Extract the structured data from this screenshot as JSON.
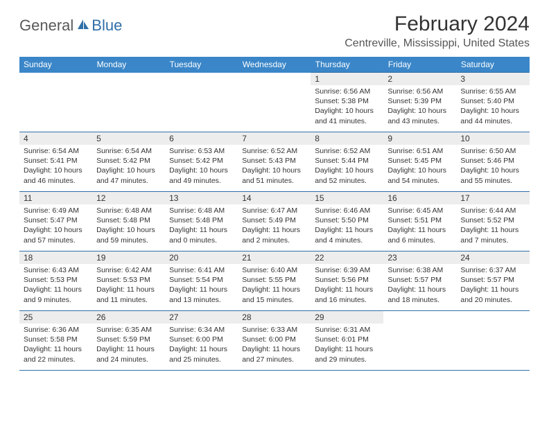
{
  "logo": {
    "general": "General",
    "blue": "Blue"
  },
  "title": "February 2024",
  "location": "Centreville, Mississippi, United States",
  "dayHeaders": [
    "Sunday",
    "Monday",
    "Tuesday",
    "Wednesday",
    "Thursday",
    "Friday",
    "Saturday"
  ],
  "colors": {
    "headerBg": "#3a86c8",
    "headerText": "#ffffff",
    "dayNumBg": "#ededed",
    "gridLine": "#2f6fa8",
    "logoBlue": "#2f6fa8",
    "logoGray": "#595959"
  },
  "weeks": [
    [
      null,
      null,
      null,
      null,
      {
        "n": "1",
        "sr": "Sunrise: 6:56 AM",
        "ss": "Sunset: 5:38 PM",
        "d1": "Daylight: 10 hours",
        "d2": "and 41 minutes."
      },
      {
        "n": "2",
        "sr": "Sunrise: 6:56 AM",
        "ss": "Sunset: 5:39 PM",
        "d1": "Daylight: 10 hours",
        "d2": "and 43 minutes."
      },
      {
        "n": "3",
        "sr": "Sunrise: 6:55 AM",
        "ss": "Sunset: 5:40 PM",
        "d1": "Daylight: 10 hours",
        "d2": "and 44 minutes."
      }
    ],
    [
      {
        "n": "4",
        "sr": "Sunrise: 6:54 AM",
        "ss": "Sunset: 5:41 PM",
        "d1": "Daylight: 10 hours",
        "d2": "and 46 minutes."
      },
      {
        "n": "5",
        "sr": "Sunrise: 6:54 AM",
        "ss": "Sunset: 5:42 PM",
        "d1": "Daylight: 10 hours",
        "d2": "and 47 minutes."
      },
      {
        "n": "6",
        "sr": "Sunrise: 6:53 AM",
        "ss": "Sunset: 5:42 PM",
        "d1": "Daylight: 10 hours",
        "d2": "and 49 minutes."
      },
      {
        "n": "7",
        "sr": "Sunrise: 6:52 AM",
        "ss": "Sunset: 5:43 PM",
        "d1": "Daylight: 10 hours",
        "d2": "and 51 minutes."
      },
      {
        "n": "8",
        "sr": "Sunrise: 6:52 AM",
        "ss": "Sunset: 5:44 PM",
        "d1": "Daylight: 10 hours",
        "d2": "and 52 minutes."
      },
      {
        "n": "9",
        "sr": "Sunrise: 6:51 AM",
        "ss": "Sunset: 5:45 PM",
        "d1": "Daylight: 10 hours",
        "d2": "and 54 minutes."
      },
      {
        "n": "10",
        "sr": "Sunrise: 6:50 AM",
        "ss": "Sunset: 5:46 PM",
        "d1": "Daylight: 10 hours",
        "d2": "and 55 minutes."
      }
    ],
    [
      {
        "n": "11",
        "sr": "Sunrise: 6:49 AM",
        "ss": "Sunset: 5:47 PM",
        "d1": "Daylight: 10 hours",
        "d2": "and 57 minutes."
      },
      {
        "n": "12",
        "sr": "Sunrise: 6:48 AM",
        "ss": "Sunset: 5:48 PM",
        "d1": "Daylight: 10 hours",
        "d2": "and 59 minutes."
      },
      {
        "n": "13",
        "sr": "Sunrise: 6:48 AM",
        "ss": "Sunset: 5:48 PM",
        "d1": "Daylight: 11 hours",
        "d2": "and 0 minutes."
      },
      {
        "n": "14",
        "sr": "Sunrise: 6:47 AM",
        "ss": "Sunset: 5:49 PM",
        "d1": "Daylight: 11 hours",
        "d2": "and 2 minutes."
      },
      {
        "n": "15",
        "sr": "Sunrise: 6:46 AM",
        "ss": "Sunset: 5:50 PM",
        "d1": "Daylight: 11 hours",
        "d2": "and 4 minutes."
      },
      {
        "n": "16",
        "sr": "Sunrise: 6:45 AM",
        "ss": "Sunset: 5:51 PM",
        "d1": "Daylight: 11 hours",
        "d2": "and 6 minutes."
      },
      {
        "n": "17",
        "sr": "Sunrise: 6:44 AM",
        "ss": "Sunset: 5:52 PM",
        "d1": "Daylight: 11 hours",
        "d2": "and 7 minutes."
      }
    ],
    [
      {
        "n": "18",
        "sr": "Sunrise: 6:43 AM",
        "ss": "Sunset: 5:53 PM",
        "d1": "Daylight: 11 hours",
        "d2": "and 9 minutes."
      },
      {
        "n": "19",
        "sr": "Sunrise: 6:42 AM",
        "ss": "Sunset: 5:53 PM",
        "d1": "Daylight: 11 hours",
        "d2": "and 11 minutes."
      },
      {
        "n": "20",
        "sr": "Sunrise: 6:41 AM",
        "ss": "Sunset: 5:54 PM",
        "d1": "Daylight: 11 hours",
        "d2": "and 13 minutes."
      },
      {
        "n": "21",
        "sr": "Sunrise: 6:40 AM",
        "ss": "Sunset: 5:55 PM",
        "d1": "Daylight: 11 hours",
        "d2": "and 15 minutes."
      },
      {
        "n": "22",
        "sr": "Sunrise: 6:39 AM",
        "ss": "Sunset: 5:56 PM",
        "d1": "Daylight: 11 hours",
        "d2": "and 16 minutes."
      },
      {
        "n": "23",
        "sr": "Sunrise: 6:38 AM",
        "ss": "Sunset: 5:57 PM",
        "d1": "Daylight: 11 hours",
        "d2": "and 18 minutes."
      },
      {
        "n": "24",
        "sr": "Sunrise: 6:37 AM",
        "ss": "Sunset: 5:57 PM",
        "d1": "Daylight: 11 hours",
        "d2": "and 20 minutes."
      }
    ],
    [
      {
        "n": "25",
        "sr": "Sunrise: 6:36 AM",
        "ss": "Sunset: 5:58 PM",
        "d1": "Daylight: 11 hours",
        "d2": "and 22 minutes."
      },
      {
        "n": "26",
        "sr": "Sunrise: 6:35 AM",
        "ss": "Sunset: 5:59 PM",
        "d1": "Daylight: 11 hours",
        "d2": "and 24 minutes."
      },
      {
        "n": "27",
        "sr": "Sunrise: 6:34 AM",
        "ss": "Sunset: 6:00 PM",
        "d1": "Daylight: 11 hours",
        "d2": "and 25 minutes."
      },
      {
        "n": "28",
        "sr": "Sunrise: 6:33 AM",
        "ss": "Sunset: 6:00 PM",
        "d1": "Daylight: 11 hours",
        "d2": "and 27 minutes."
      },
      {
        "n": "29",
        "sr": "Sunrise: 6:31 AM",
        "ss": "Sunset: 6:01 PM",
        "d1": "Daylight: 11 hours",
        "d2": "and 29 minutes."
      },
      null,
      null
    ]
  ]
}
